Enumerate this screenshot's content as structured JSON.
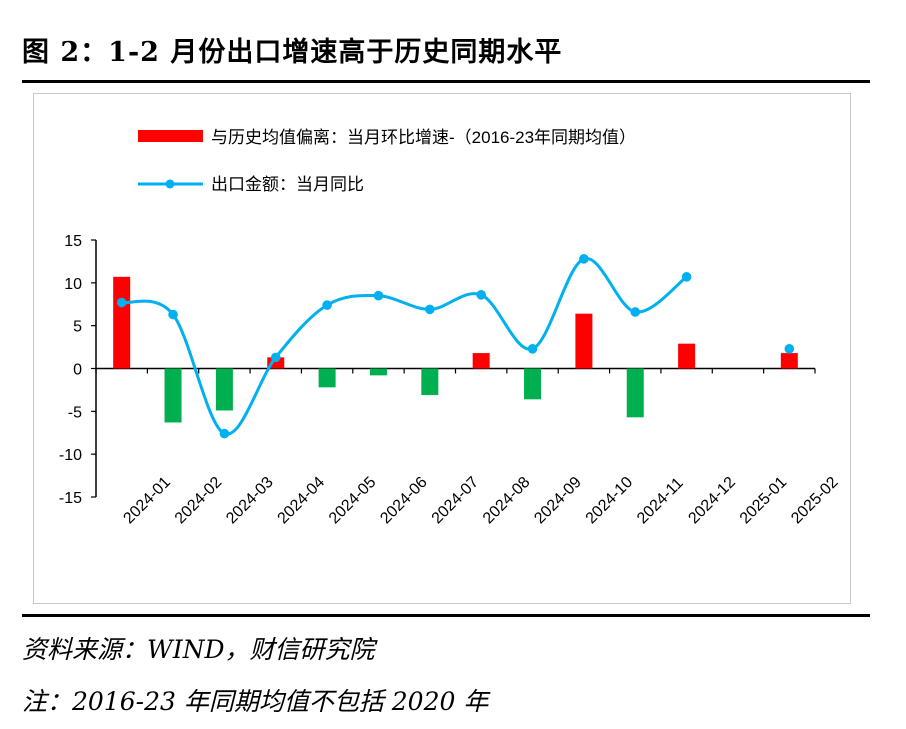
{
  "figure": {
    "title": "图 2：1-2 月份出口增速高于历史同期水平",
    "source": "资料来源：WIND，财信研究院",
    "note": "注：2016-23 年同期均值不包括 2020 年"
  },
  "chart_data": {
    "type": "bar+line",
    "categories": [
      "2024-01",
      "2024-02",
      "2024-03",
      "2024-04",
      "2024-05",
      "2024-06",
      "2024-07",
      "2024-08",
      "2024-09",
      "2024-10",
      "2024-11",
      "2024-12",
      "2025-01",
      "2025-02"
    ],
    "series": [
      {
        "name": "与历史均值偏离：当月环比增速-（2016-23年同期均值）",
        "type": "bar",
        "positive_color": "#ff0000",
        "negative_color": "#00b050",
        "values": [
          10.7,
          -6.3,
          -4.9,
          1.3,
          -2.2,
          -0.8,
          -3.1,
          1.8,
          -3.6,
          6.4,
          -5.7,
          2.9,
          null,
          1.8
        ]
      },
      {
        "name": "出口金额：当月同比",
        "type": "line",
        "color": "#00b0f0",
        "values": [
          7.7,
          6.3,
          -7.6,
          1.3,
          7.4,
          8.5,
          6.9,
          8.6,
          2.3,
          12.8,
          6.6,
          10.7,
          null,
          2.3
        ]
      }
    ],
    "ylim": [
      -15,
      15
    ],
    "yticks": [
      15,
      10,
      5,
      0,
      -5,
      -10,
      -15
    ],
    "legend_position": "top-left"
  }
}
